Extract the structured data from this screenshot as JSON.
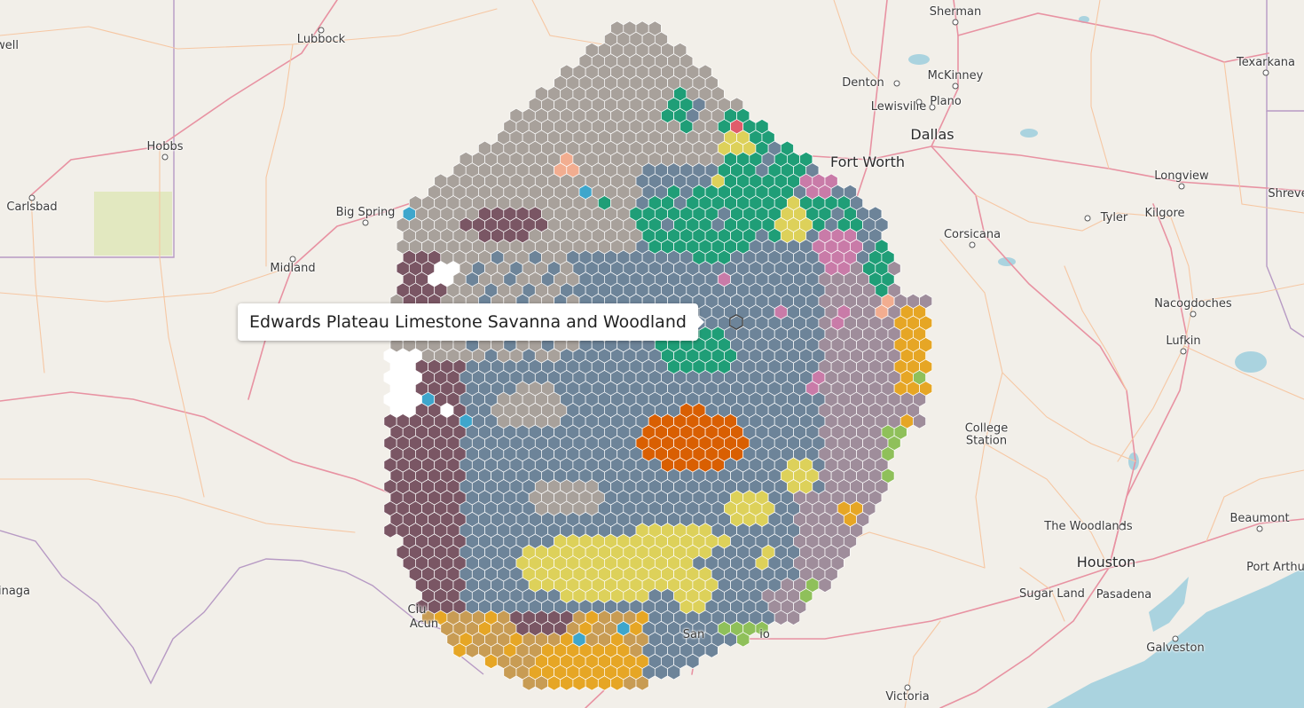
{
  "tooltip": {
    "text": "Edwards Plateau Limestone Savanna and Woodland"
  },
  "cities": [
    {
      "name": "Sherman"
    },
    {
      "name": "Texarkana"
    },
    {
      "name": "well"
    },
    {
      "name": "Lubbock"
    },
    {
      "name": "Denton"
    },
    {
      "name": "McKinney"
    },
    {
      "name": "Lewisville"
    },
    {
      "name": "Plano"
    },
    {
      "name": "Dallas"
    },
    {
      "name": "Fort Worth"
    },
    {
      "name": "Hobbs"
    },
    {
      "name": "Carlsbad"
    },
    {
      "name": "Big Spring"
    },
    {
      "name": "Longview"
    },
    {
      "name": "Tyler"
    },
    {
      "name": "Kilgore"
    },
    {
      "name": "Shreve"
    },
    {
      "name": "Corsicana"
    },
    {
      "name": "Midland"
    },
    {
      "name": "Nacogdoches"
    },
    {
      "name": "Lufkin"
    },
    {
      "name": "College Station"
    },
    {
      "name": "The Woodlands"
    },
    {
      "name": "Beaumont"
    },
    {
      "name": "Houston"
    },
    {
      "name": "Port Arthu"
    },
    {
      "name": "Sugar Land"
    },
    {
      "name": "Pasadena"
    },
    {
      "name": "Galveston"
    },
    {
      "name": "inaga"
    },
    {
      "name": "Victoria"
    },
    {
      "name": "Ciu"
    },
    {
      "name": "Acun"
    },
    {
      "name": "San"
    },
    {
      "name": "io"
    }
  ],
  "colors": {
    "background": "#f2efe9",
    "water": "#aad3df",
    "major_road": "#e892a2",
    "minor_road": "#f6c7a3",
    "border": "#b79ac4",
    "hex_stroke": "#ffffff",
    "classes": {
      "edwards_plateau_savanna": "#a8a19b",
      "slate": "#6d8499",
      "plum": "#7a5664",
      "mauve": "#9f8d9b",
      "teal": "#1f9e77",
      "yellow": "#ddd15a",
      "orange": "#d95f02",
      "gold": "#e6a625",
      "tan": "#c89c54",
      "pink": "#c97ba8",
      "white": "#ffffff",
      "light_salmon": "#f2ad90",
      "green": "#8fc05a",
      "blue": "#3ea6cc",
      "red": "#e05c6b"
    }
  }
}
